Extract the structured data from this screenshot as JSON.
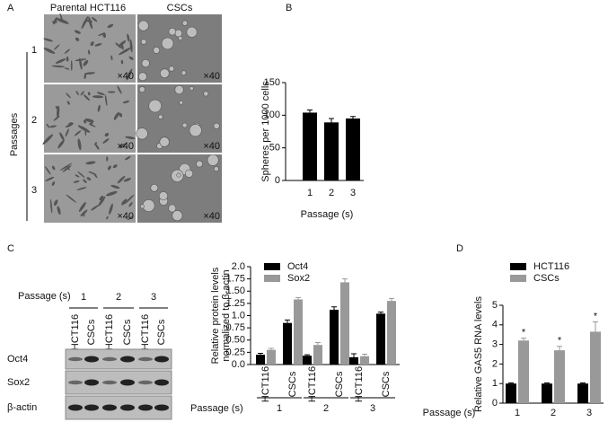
{
  "panel_labels": [
    "A",
    "B",
    "C",
    "D"
  ],
  "panel_a": {
    "columns": [
      "Parental HCT116",
      "CSCs"
    ],
    "row_title": "Passages",
    "rows": [
      "1",
      "2",
      "3"
    ],
    "magnification": "×40"
  },
  "blot": {
    "passage_label": "Passage (s)",
    "passages": [
      "1",
      "2",
      "3"
    ],
    "lanes": [
      "HCT116",
      "CSCs",
      "HCT116",
      "CSCs",
      "HCT116",
      "CSCs"
    ],
    "proteins": [
      "Oct4",
      "Sox2",
      "β-actin"
    ]
  },
  "chart_data": [
    {
      "type": "bar",
      "ylabel": "Spheres per 1000 cells",
      "xlabel": "Passage (s)",
      "categories": [
        "1",
        "2",
        "3"
      ],
      "series": [
        {
          "color": "#000000",
          "values": [
            104,
            89,
            95
          ],
          "errors": [
            4,
            6,
            3
          ]
        }
      ],
      "ylim": [
        0,
        150
      ],
      "yticks": [
        0,
        50,
        100,
        150
      ]
    },
    {
      "type": "bar",
      "ylabel": [
        "Relative protein levels",
        "normalized to β-actin"
      ],
      "xlabel": "Passage (s)",
      "categories": [
        "HCT116",
        "CSCs",
        "HCT116",
        "CSCs",
        "HCT116",
        "CSCs"
      ],
      "groups": [
        "1",
        "2",
        "3"
      ],
      "series": [
        {
          "name": "Oct4",
          "color": "#000000",
          "values": [
            0.2,
            0.85,
            0.18,
            1.12,
            0.15,
            1.04
          ],
          "errors": [
            0.03,
            0.06,
            0.02,
            0.06,
            0.07,
            0.03
          ]
        },
        {
          "name": "Sox2",
          "color": "#999999",
          "values": [
            0.3,
            1.33,
            0.4,
            1.68,
            0.17,
            1.3
          ],
          "errors": [
            0.03,
            0.04,
            0.05,
            0.07,
            0.04,
            0.05
          ]
        }
      ],
      "ylim": [
        0,
        2
      ],
      "yticks": [
        {
          "value": 0,
          "label": "0.0"
        },
        0.25,
        {
          "value": 0.5,
          "label": "0.50"
        },
        0.75,
        {
          "value": 1,
          "label": "1.0"
        },
        1.25,
        {
          "value": 1.5,
          "label": "1.50"
        },
        1.75,
        {
          "value": 2,
          "label": "2.0"
        }
      ]
    },
    {
      "type": "bar",
      "ylabel": "Relative GAS5 RNA levels",
      "xlabel": "Passage (s)",
      "categories": [
        "1",
        "2",
        "3"
      ],
      "series": [
        {
          "name": "HCT116",
          "color": "#000000",
          "values": [
            1.0,
            1.0,
            1.0
          ],
          "errors": [
            0.03,
            0.03,
            0.03
          ]
        },
        {
          "name": "CSCs",
          "color": "#999999",
          "values": [
            3.2,
            2.7,
            3.65
          ],
          "errors": [
            0.12,
            0.2,
            0.5
          ]
        }
      ],
      "annotations": [
        "*",
        "*",
        "*"
      ],
      "ylim": [
        0,
        5
      ],
      "yticks": [
        0,
        1,
        2,
        3,
        4,
        5
      ]
    }
  ]
}
